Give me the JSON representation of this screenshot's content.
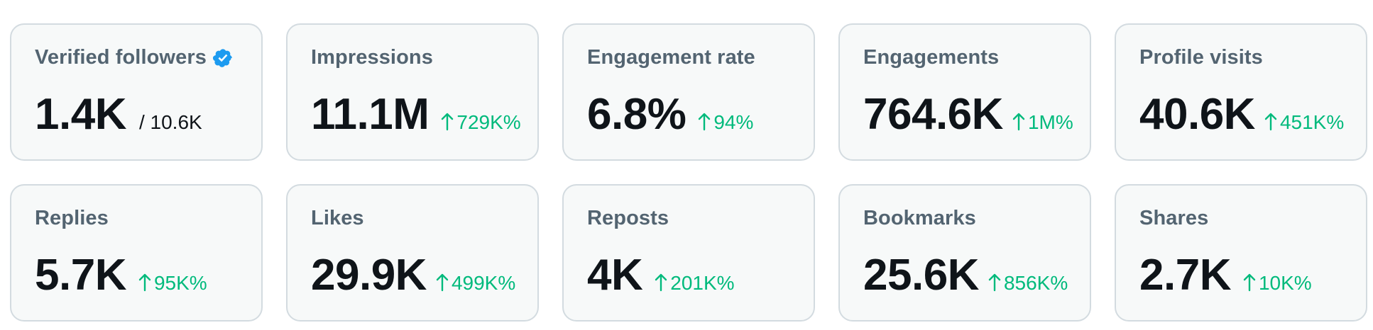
{
  "metrics": [
    {
      "title": "Verified followers",
      "value": "1.4K",
      "total": "/ 10.6K",
      "verified_icon": "verified-badge-icon",
      "accent": "#1d9bf0"
    },
    {
      "title": "Impressions",
      "value": "11.1M",
      "delta": "729K%"
    },
    {
      "title": "Engagement rate",
      "value": "6.8%",
      "delta": "94%"
    },
    {
      "title": "Engagements",
      "value": "764.6K",
      "delta": "1M%"
    },
    {
      "title": "Profile visits",
      "value": "40.6K",
      "delta": "451K%"
    },
    {
      "title": "Replies",
      "value": "5.7K",
      "delta": "95K%"
    },
    {
      "title": "Likes",
      "value": "29.9K",
      "delta": "499K%"
    },
    {
      "title": "Reposts",
      "value": "4K",
      "delta": "201K%"
    },
    {
      "title": "Bookmarks",
      "value": "25.6K",
      "delta": "856K%"
    },
    {
      "title": "Shares",
      "value": "2.7K",
      "delta": "10K%"
    }
  ],
  "colors": {
    "positive": "#00ba7c",
    "card_bg": "#f7f9f9",
    "card_border": "#d3dbe0",
    "title": "#536471",
    "value": "#0f1419"
  }
}
